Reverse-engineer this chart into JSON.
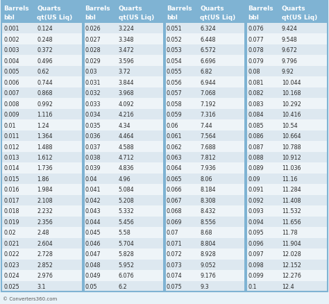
{
  "footer": "© Converters360.com",
  "header_bg": "#7fb3d3",
  "header_text_color": "#ffffff",
  "row_bg_even": "#dde8f0",
  "row_bg_odd": "#eef4f8",
  "col_sep_color": "#7fb3d3",
  "border_color": "#7fb3d3",
  "font_color": "#2a2a2a",
  "fig_bg": "#e8f2f8",
  "columns": [
    {
      "header1": "Barrels",
      "header2": "bbl"
    },
    {
      "header1": "Quarts",
      "header2": "qt(US Liq)"
    },
    {
      "header1": "Barrels",
      "header2": "bbl"
    },
    {
      "header1": "Quarts",
      "header2": "qt(US Liq)"
    },
    {
      "header1": "Barrels",
      "header2": "bbl"
    },
    {
      "header1": "Quarts",
      "header2": "qt(US Liq)"
    },
    {
      "header1": "Barrels",
      "header2": "bbl"
    },
    {
      "header1": "Quarts",
      "header2": "qt(US Liq)"
    }
  ],
  "rows": [
    [
      "0.001",
      "0.124",
      "0.026",
      "3.224",
      "0.051",
      "6.324",
      "0.076",
      "9.424"
    ],
    [
      "0.002",
      "0.248",
      "0.027",
      "3.348",
      "0.052",
      "6.448",
      "0.077",
      "9.548"
    ],
    [
      "0.003",
      "0.372",
      "0.028",
      "3.472",
      "0.053",
      "6.572",
      "0.078",
      "9.672"
    ],
    [
      "0.004",
      "0.496",
      "0.029",
      "3.596",
      "0.054",
      "6.696",
      "0.079",
      "9.796"
    ],
    [
      "0.005",
      "0.62",
      "0.03",
      "3.72",
      "0.055",
      "6.82",
      "0.08",
      "9.92"
    ],
    [
      "0.006",
      "0.744",
      "0.031",
      "3.844",
      "0.056",
      "6.944",
      "0.081",
      "10.044"
    ],
    [
      "0.007",
      "0.868",
      "0.032",
      "3.968",
      "0.057",
      "7.068",
      "0.082",
      "10.168"
    ],
    [
      "0.008",
      "0.992",
      "0.033",
      "4.092",
      "0.058",
      "7.192",
      "0.083",
      "10.292"
    ],
    [
      "0.009",
      "1.116",
      "0.034",
      "4.216",
      "0.059",
      "7.316",
      "0.084",
      "10.416"
    ],
    [
      "0.01",
      "1.24",
      "0.035",
      "4.34",
      "0.06",
      "7.44",
      "0.085",
      "10.54"
    ],
    [
      "0.011",
      "1.364",
      "0.036",
      "4.464",
      "0.061",
      "7.564",
      "0.086",
      "10.664"
    ],
    [
      "0.012",
      "1.488",
      "0.037",
      "4.588",
      "0.062",
      "7.688",
      "0.087",
      "10.788"
    ],
    [
      "0.013",
      "1.612",
      "0.038",
      "4.712",
      "0.063",
      "7.812",
      "0.088",
      "10.912"
    ],
    [
      "0.014",
      "1.736",
      "0.039",
      "4.836",
      "0.064",
      "7.936",
      "0.089",
      "11.036"
    ],
    [
      "0.015",
      "1.86",
      "0.04",
      "4.96",
      "0.065",
      "8.06",
      "0.09",
      "11.16"
    ],
    [
      "0.016",
      "1.984",
      "0.041",
      "5.084",
      "0.066",
      "8.184",
      "0.091",
      "11.284"
    ],
    [
      "0.017",
      "2.108",
      "0.042",
      "5.208",
      "0.067",
      "8.308",
      "0.092",
      "11.408"
    ],
    [
      "0.018",
      "2.232",
      "0.043",
      "5.332",
      "0.068",
      "8.432",
      "0.093",
      "11.532"
    ],
    [
      "0.019",
      "2.356",
      "0.044",
      "5.456",
      "0.069",
      "8.556",
      "0.094",
      "11.656"
    ],
    [
      "0.02",
      "2.48",
      "0.045",
      "5.58",
      "0.07",
      "8.68",
      "0.095",
      "11.78"
    ],
    [
      "0.021",
      "2.604",
      "0.046",
      "5.704",
      "0.071",
      "8.804",
      "0.096",
      "11.904"
    ],
    [
      "0.022",
      "2.728",
      "0.047",
      "5.828",
      "0.072",
      "8.928",
      "0.097",
      "12.028"
    ],
    [
      "0.023",
      "2.852",
      "0.048",
      "5.952",
      "0.073",
      "9.052",
      "0.098",
      "12.152"
    ],
    [
      "0.024",
      "2.976",
      "0.049",
      "6.076",
      "0.074",
      "9.176",
      "0.099",
      "12.276"
    ],
    [
      "0.025",
      "3.1",
      "0.05",
      "6.2",
      "0.075",
      "9.3",
      "0.1",
      "12.4"
    ]
  ],
  "col_widths_rel": [
    0.82,
    1.18,
    0.82,
    1.18,
    0.82,
    1.18,
    0.82,
    1.18
  ],
  "header_font": 6.5,
  "data_font": 5.8,
  "footer_font": 5.0
}
